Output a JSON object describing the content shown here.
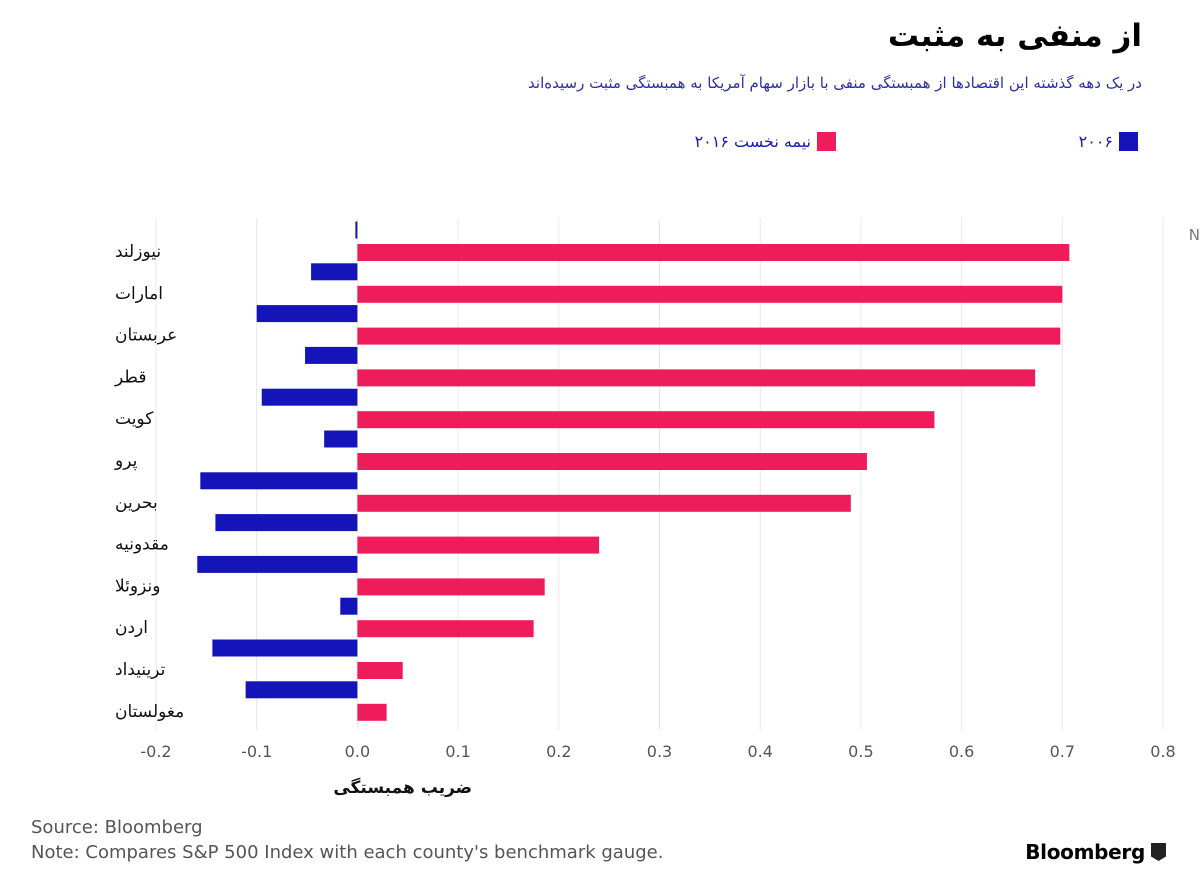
{
  "header": {
    "title": "از منفی به مثبت",
    "subtitle": "در یک دهه گذشته این اقتصادها از همبستگی منفی با بازار سهام آمریکا به همبستگی مثبت رسیده‌اند"
  },
  "legend": {
    "items": [
      {
        "label": "۲۰۰۶",
        "color": "#1414b8"
      },
      {
        "label": "نیمه نخست ۲۰۱۶",
        "color": "#ee1c5b"
      }
    ]
  },
  "footer": {
    "source": "Source: Bloomberg",
    "note": "Note: Compares S&P 500 Index with each county's benchmark gauge.",
    "brand": "Bloomberg"
  },
  "edge": {
    "mark": "N"
  },
  "chart_data": {
    "type": "bar",
    "orientation": "horizontal",
    "xlabel": "ضریب همبستگی",
    "xlim": [
      -0.2,
      0.8
    ],
    "xticks": [
      -0.2,
      -0.1,
      0.0,
      0.1,
      0.2,
      0.3,
      0.4,
      0.5,
      0.6,
      0.7,
      0.8
    ],
    "xtick_labels": [
      "-0.2",
      "-0.1",
      "0.0",
      "0.1",
      "0.2",
      "0.3",
      "0.4",
      "0.5",
      "0.6",
      "0.7",
      "0.8"
    ],
    "grid": "vertical",
    "categories": [
      "نیوزلند",
      "امارات",
      "عربستان",
      "قطر",
      "کویت",
      "پرو",
      "بحرین",
      "مقدونیه",
      "ونزوئلا",
      "اردن",
      "ترینیداد",
      "مغولستان",
      ""
    ],
    "series": [
      {
        "name": "۲۰۰۶",
        "color": "#1414b8",
        "values": [
          -0.002,
          -0.046,
          -0.1,
          -0.052,
          -0.095,
          -0.033,
          -0.156,
          -0.141,
          -0.159,
          -0.017,
          -0.144,
          -0.111,
          null
        ]
      },
      {
        "name": "نیمه نخست ۲۰۱۶",
        "color": "#ee1c5b",
        "values": [
          0.707,
          0.7,
          0.698,
          0.673,
          0.573,
          0.506,
          0.49,
          0.24,
          0.186,
          0.175,
          0.045,
          0.029,
          null
        ]
      }
    ]
  }
}
